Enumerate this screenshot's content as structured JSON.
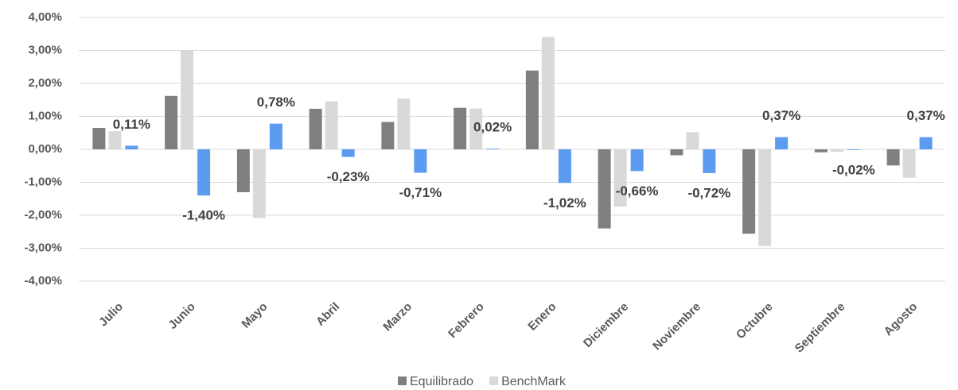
{
  "chart_data": {
    "type": "bar",
    "categories": [
      "Julio",
      "Junio",
      "Mayo",
      "Abril",
      "Marzo",
      "Febrero",
      "Enero",
      "Diciembre",
      "Noviembre",
      "Octubre",
      "Septiembre",
      "Agosto"
    ],
    "series": [
      {
        "name": "Equilibrado",
        "color": "#7f7f7f",
        "values": [
          0.65,
          1.62,
          -1.3,
          1.23,
          0.83,
          1.26,
          2.39,
          -2.4,
          -0.18,
          -2.56,
          -0.09,
          -0.49
        ]
      },
      {
        "name": "BenchMark",
        "color": "#d9d9d9",
        "values": [
          0.55,
          3.0,
          -2.08,
          1.46,
          1.54,
          1.24,
          3.41,
          -1.74,
          0.52,
          -2.93,
          -0.07,
          -0.86
        ]
      },
      {
        "color": "#5b9bf0",
        "values": [
          0.11,
          -1.4,
          0.78,
          -0.23,
          -0.71,
          0.02,
          -1.02,
          -0.66,
          -0.72,
          0.37,
          -0.02,
          0.37
        ],
        "value_labels": [
          "0,11%",
          "-1,40%",
          "0,78%",
          "-0,23%",
          "-0,71%",
          "0,02%",
          "-1,02%",
          "-0,66%",
          "-0,72%",
          "0,37%",
          "-0,02%",
          "0,37%"
        ]
      }
    ],
    "ylim": [
      -4,
      4
    ],
    "yticks": [
      {
        "value": -4,
        "label": "-4,00%"
      },
      {
        "value": -3,
        "label": "-3,00%"
      },
      {
        "value": -2,
        "label": "-2,00%"
      },
      {
        "value": -1,
        "label": "-1,00%"
      },
      {
        "value": 0,
        "label": "0,00%"
      },
      {
        "value": 1,
        "label": "1,00%"
      },
      {
        "value": 2,
        "label": "2,00%"
      },
      {
        "value": 3,
        "label": "3,00%"
      },
      {
        "value": 4,
        "label": "4,00%"
      }
    ],
    "grid": true
  }
}
